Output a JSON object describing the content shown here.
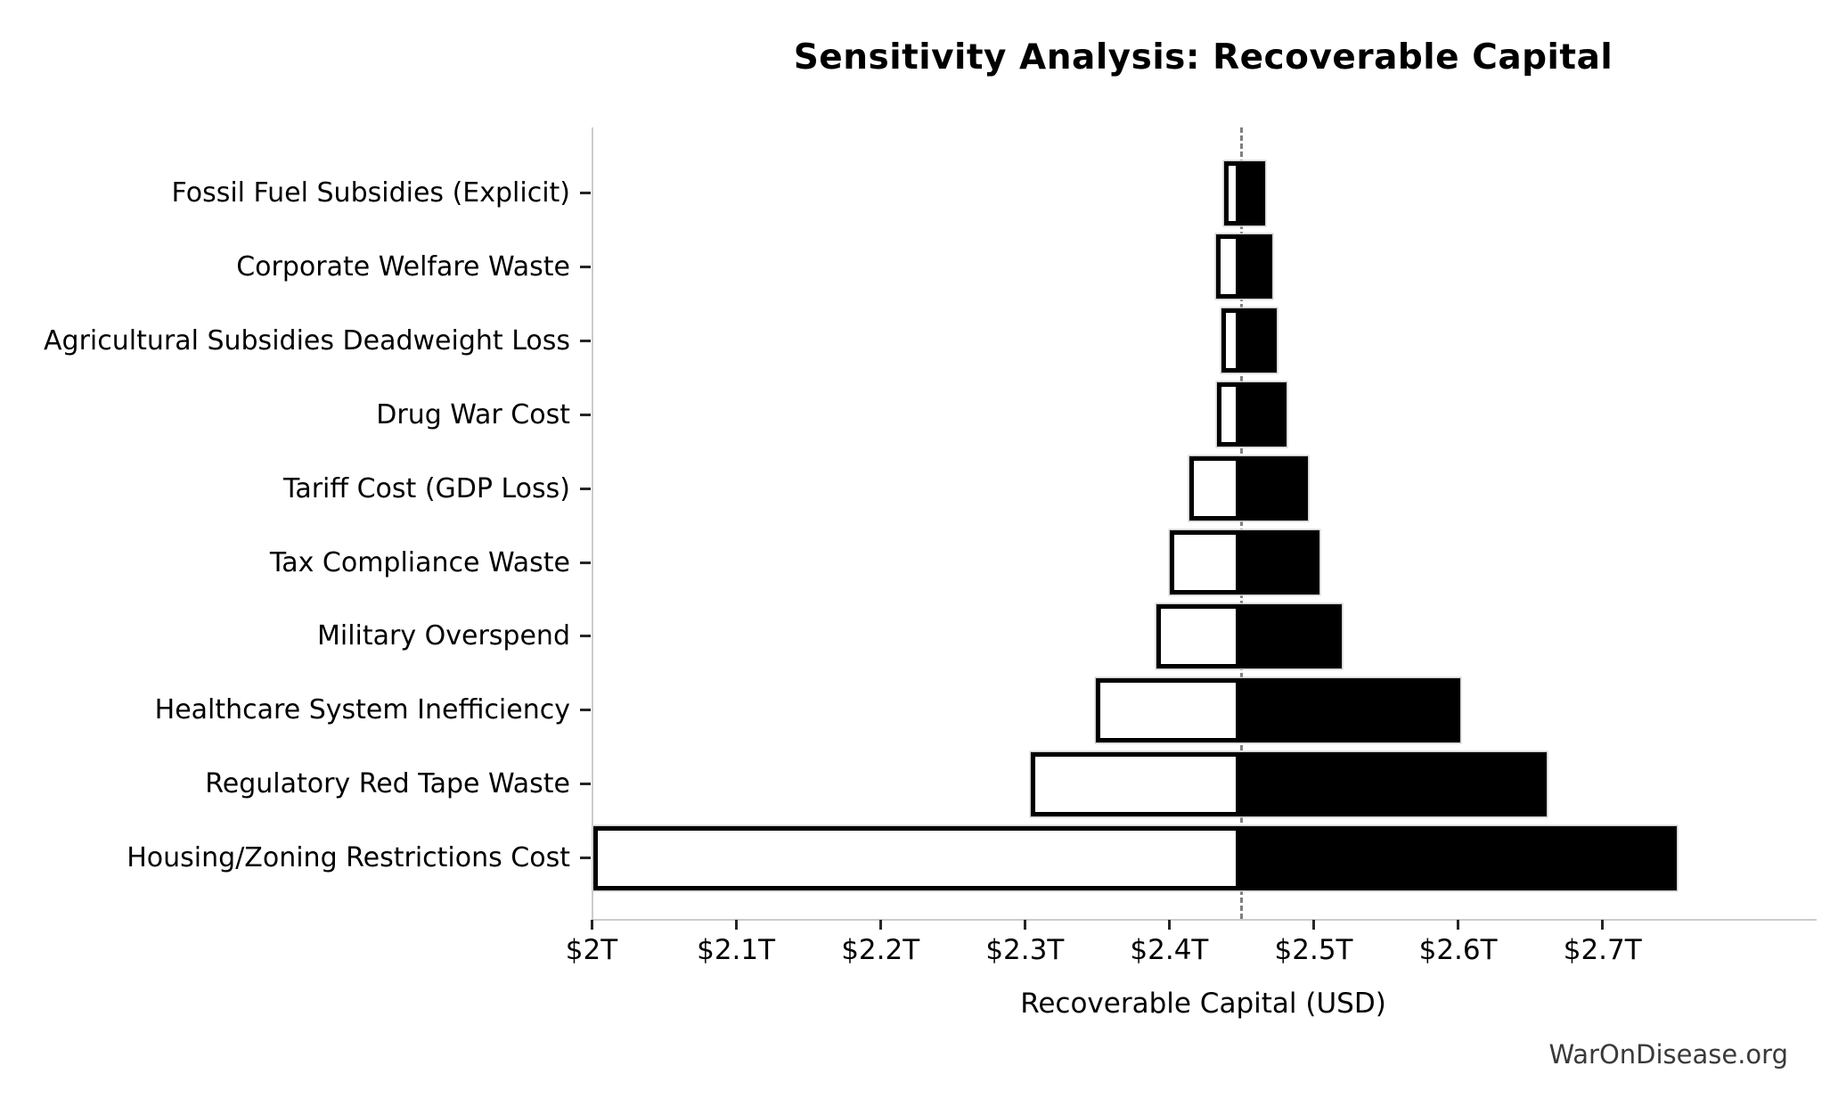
{
  "figure": {
    "title": "Sensitivity Analysis: Recoverable Capital",
    "xlabel": "Recoverable Capital (USD)",
    "watermark": "WarOnDisease.org"
  },
  "chart_data": {
    "type": "bar",
    "subtype": "tornado-sensitivity",
    "orientation": "horizontal",
    "title": "Sensitivity Analysis: Recoverable Capital",
    "xlabel": "Recoverable Capital (USD)",
    "unit": "trillion USD",
    "baseline_value": 2.448,
    "axis": {
      "min": 2.0,
      "max": 2.847,
      "tick_values": [
        2.0,
        2.1,
        2.2,
        2.3,
        2.4,
        2.5,
        2.6,
        2.7
      ],
      "tick_labels": [
        "$2T",
        "$2.1T",
        "$2.2T",
        "$2.3T",
        "$2.4T",
        "$2.5T",
        "$2.6T",
        "$2.7T"
      ],
      "grid": false
    },
    "legend": null,
    "categories": [
      "Fossil Fuel Subsidies (Explicit)",
      "Corporate Welfare Waste",
      "Agricultural Subsidies Deadweight Loss",
      "Drug War Cost",
      "Tariff Cost (GDP Loss)",
      "Tax Compliance Waste",
      "Military Overspend",
      "Healthcare System Inefficiency",
      "Regulatory Red Tape Waste",
      "Housing/Zoning Restrictions Cost"
    ],
    "series": [
      {
        "name": "low_scenario_total",
        "values": [
          2.437,
          2.431,
          2.435,
          2.432,
          2.413,
          2.399,
          2.39,
          2.348,
          2.303,
          2.0
        ]
      },
      {
        "name": "high_scenario_total",
        "values": [
          2.465,
          2.47,
          2.473,
          2.48,
          2.495,
          2.503,
          2.518,
          2.6,
          2.66,
          2.75
        ]
      }
    ],
    "colors": {
      "high_bar_fill": "#000000",
      "low_bar_fill": "#ffffff",
      "low_bar_border": "#000000",
      "bar_outline": "#cfcfcf",
      "baseline_line": "#808080",
      "spine": "#cccccc",
      "text": "#000000",
      "watermark_text": "#3a3a3a"
    }
  }
}
